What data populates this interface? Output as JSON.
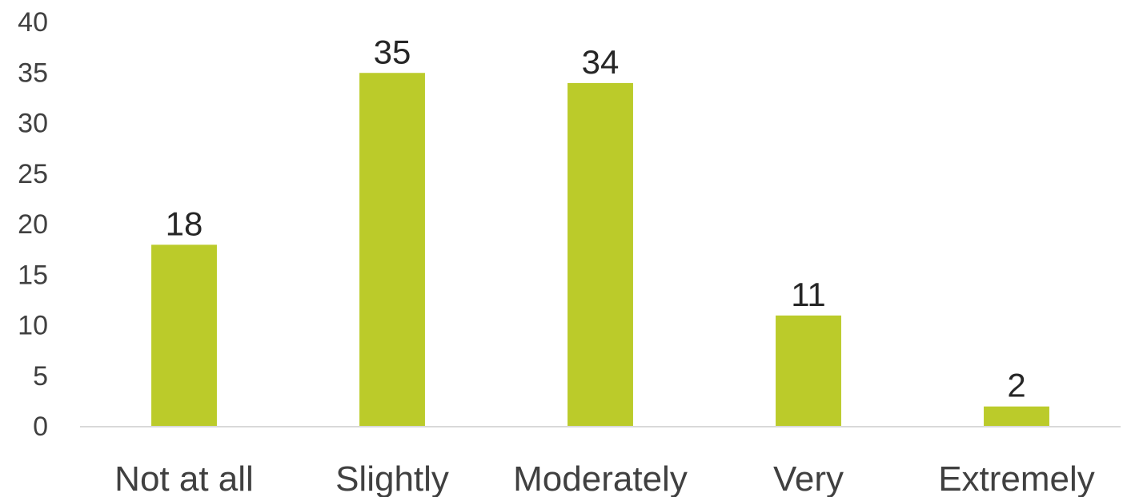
{
  "chart_data": {
    "type": "bar",
    "title": "",
    "xlabel": "",
    "ylabel": "",
    "categories": [
      "Not at all",
      "Slightly",
      "Moderately",
      "Very",
      "Extremely"
    ],
    "values": [
      18,
      35,
      34,
      11,
      2
    ],
    "data_labels": [
      "18",
      "35",
      "34",
      "11",
      "2"
    ],
    "ylim": [
      0,
      40
    ],
    "yticks": [
      0,
      5,
      10,
      15,
      20,
      25,
      30,
      35,
      40
    ],
    "ytick_labels": [
      "0",
      "5",
      "10",
      "15",
      "20",
      "25",
      "30",
      "35",
      "40"
    ],
    "grid": false,
    "legend": "none",
    "colors": {
      "bar": "#BBCB2A",
      "axis": "#D9D9D9"
    }
  }
}
